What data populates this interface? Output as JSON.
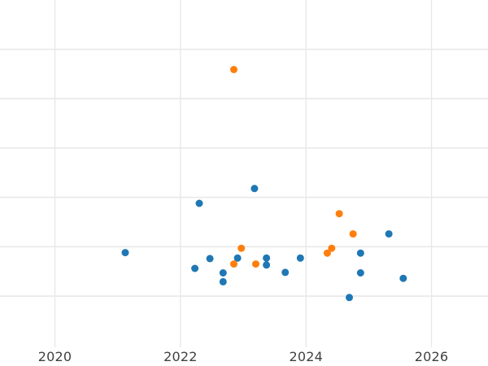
{
  "chart_data": {
    "type": "scatter",
    "title": "",
    "xlabel": "",
    "ylabel": "",
    "legend": "none",
    "grid": true,
    "x_axis": {
      "ticks": [
        2020,
        2022,
        2024,
        2026
      ],
      "tick_labels": [
        "2020",
        "2022",
        "2024",
        "2026"
      ],
      "range": [
        2019.125,
        2026.9
      ]
    },
    "y_axis": {
      "tick_labels": [],
      "labels_visible": false,
      "gridline_values": [
        1,
        2,
        3,
        4,
        5,
        6
      ],
      "range": [
        -0.038,
        7.0
      ],
      "note": "y tick labels are cropped outside the left edge; values are in visible-gridline units"
    },
    "series": [
      {
        "name": "series-blue",
        "color": "#1f77b4",
        "points": [
          {
            "x": 2021.12,
            "y": 1.88
          },
          {
            "x": 2022.3,
            "y": 2.88
          },
          {
            "x": 2022.23,
            "y": 1.56
          },
          {
            "x": 2022.47,
            "y": 1.76
          },
          {
            "x": 2022.68,
            "y": 1.47
          },
          {
            "x": 2022.68,
            "y": 1.29
          },
          {
            "x": 2022.91,
            "y": 1.77
          },
          {
            "x": 2023.18,
            "y": 3.18
          },
          {
            "x": 2023.37,
            "y": 1.77
          },
          {
            "x": 2023.37,
            "y": 1.63
          },
          {
            "x": 2023.67,
            "y": 1.48
          },
          {
            "x": 2023.91,
            "y": 1.77
          },
          {
            "x": 2024.69,
            "y": 0.97
          },
          {
            "x": 2024.87,
            "y": 1.87
          },
          {
            "x": 2024.87,
            "y": 1.47
          },
          {
            "x": 2025.32,
            "y": 2.26
          },
          {
            "x": 2025.55,
            "y": 1.36
          }
        ]
      },
      {
        "name": "series-orange",
        "color": "#ff7f0e",
        "points": [
          {
            "x": 2022.85,
            "y": 5.59
          },
          {
            "x": 2022.85,
            "y": 1.65
          },
          {
            "x": 2022.97,
            "y": 1.97
          },
          {
            "x": 2023.2,
            "y": 1.65
          },
          {
            "x": 2024.34,
            "y": 1.87
          },
          {
            "x": 2024.41,
            "y": 1.97
          },
          {
            "x": 2024.53,
            "y": 2.67
          },
          {
            "x": 2024.75,
            "y": 2.26
          }
        ]
      }
    ],
    "style": {
      "background_color": "#ffffff",
      "grid_color": "#e8e8e8",
      "tick_label_color": "#404040",
      "marker_radius_px": 4.5
    }
  }
}
